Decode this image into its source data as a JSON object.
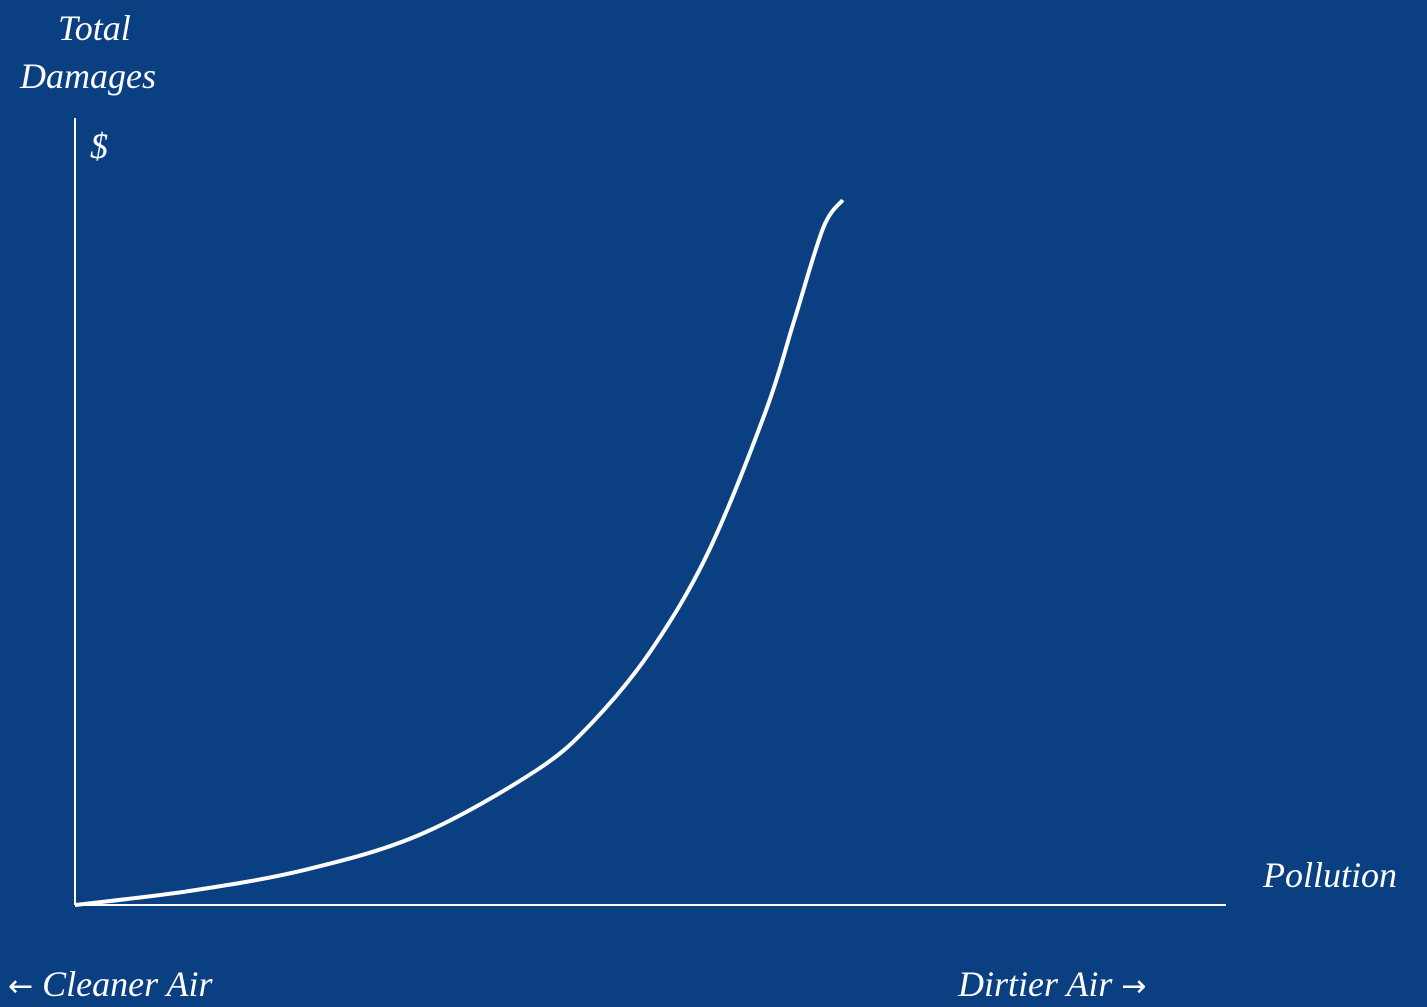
{
  "colors": {
    "background": "#0a3f82",
    "foreground": "#ffffff"
  },
  "labels": {
    "ylabel_line1": "Total",
    "ylabel_line2": "Damages",
    "yunit": "$",
    "xlabel": "Pollution",
    "left_arrow": "←",
    "left_note": "Cleaner Air",
    "right_note": "Dirtier Air",
    "right_arrow": "→"
  },
  "chart_data": {
    "type": "line",
    "title": "",
    "xlabel": "Pollution",
    "ylabel": "Total Damages $",
    "grid": false,
    "legend": "none",
    "xlim": [
      0,
      100
    ],
    "ylim": [
      0,
      100
    ],
    "series": [
      {
        "x": [
          0,
          10,
          20,
          30,
          40,
          45,
          50,
          55,
          60,
          62.5,
          65,
          66.7
        ],
        "y": [
          0,
          2,
          5,
          10,
          19,
          26,
          36,
          50,
          70,
          83,
          96,
          100
        ]
      }
    ]
  }
}
